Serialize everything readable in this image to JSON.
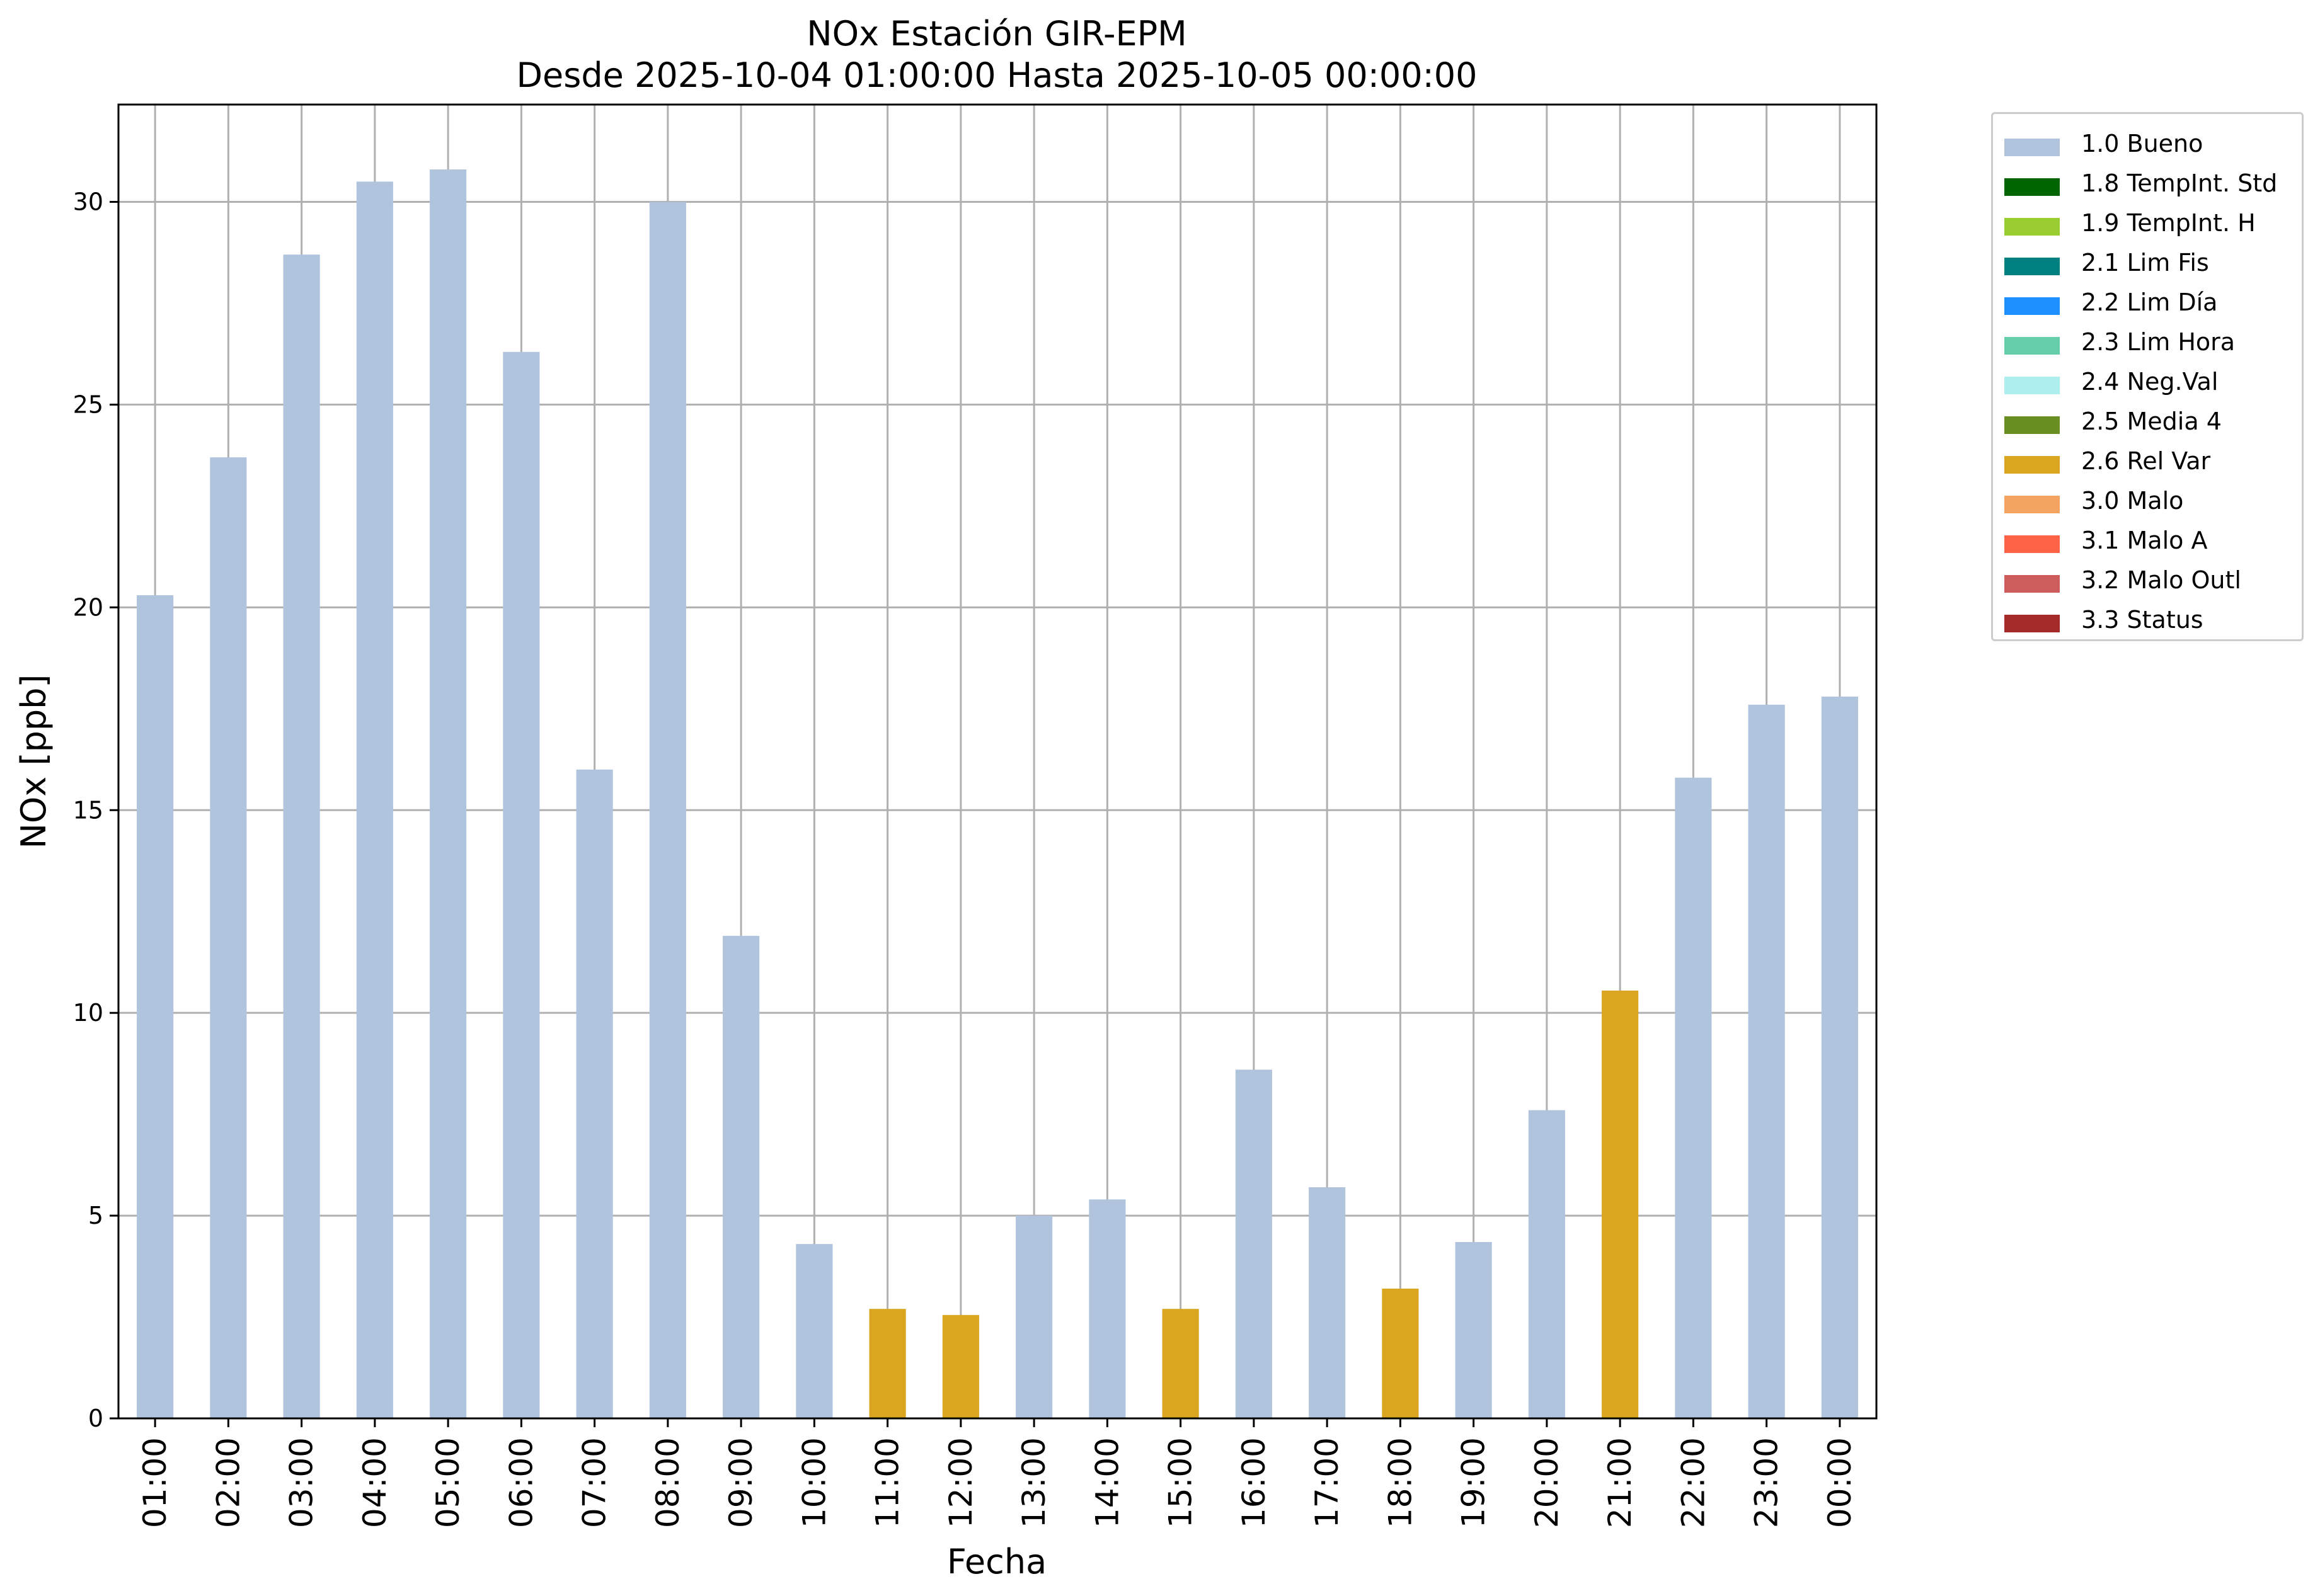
{
  "chart_data": {
    "type": "bar",
    "title": "NOx Estación GIR-EPM",
    "subtitle": "Desde 2025-10-04 01:00:00 Hasta 2025-10-05 00:00:00",
    "xlabel": "Fecha",
    "ylabel": "NOx [ppb]",
    "ylim": [
      0,
      32.4
    ],
    "yticks": [
      0,
      5,
      10,
      15,
      20,
      25,
      30
    ],
    "grid": true,
    "legend_position": "outside right",
    "categories": [
      "01:00",
      "02:00",
      "03:00",
      "04:00",
      "05:00",
      "06:00",
      "07:00",
      "08:00",
      "09:00",
      "10:00",
      "11:00",
      "12:00",
      "13:00",
      "14:00",
      "15:00",
      "16:00",
      "17:00",
      "18:00",
      "19:00",
      "20:00",
      "21:00",
      "22:00",
      "23:00",
      "00:00"
    ],
    "values": [
      20.3,
      23.7,
      28.7,
      30.5,
      30.8,
      26.3,
      16.0,
      30.0,
      11.9,
      4.3,
      2.7,
      2.55,
      5.0,
      5.4,
      2.7,
      8.6,
      5.7,
      3.2,
      4.35,
      7.6,
      10.55,
      15.8,
      17.6,
      17.8
    ],
    "flags": [
      "1.0 Bueno",
      "1.0 Bueno",
      "1.0 Bueno",
      "1.0 Bueno",
      "1.0 Bueno",
      "1.0 Bueno",
      "1.0 Bueno",
      "1.0 Bueno",
      "1.0 Bueno",
      "1.0 Bueno",
      "2.6 Rel Var",
      "2.6 Rel Var",
      "1.0 Bueno",
      "1.0 Bueno",
      "2.6 Rel Var",
      "1.0 Bueno",
      "1.0 Bueno",
      "2.6 Rel Var",
      "1.0 Bueno",
      "1.0 Bueno",
      "2.6 Rel Var",
      "1.0 Bueno",
      "1.0 Bueno",
      "1.0 Bueno"
    ],
    "legend": [
      {
        "label": "1.0 Bueno",
        "color": "#b0c4de"
      },
      {
        "label": "1.8 TempInt. Std",
        "color": "#006400"
      },
      {
        "label": "1.9 TempInt. H",
        "color": "#9acd32"
      },
      {
        "label": "2.1 Lim Fis",
        "color": "#008080"
      },
      {
        "label": "2.2 Lim Día",
        "color": "#1e90ff"
      },
      {
        "label": "2.3 Lim Hora",
        "color": "#66cdaa"
      },
      {
        "label": "2.4 Neg.Val",
        "color": "#afeeee"
      },
      {
        "label": "2.5 Media 4",
        "color": "#6b8e23"
      },
      {
        "label": "2.6 Rel Var",
        "color": "#daa520"
      },
      {
        "label": "3.0 Malo",
        "color": "#f4a460"
      },
      {
        "label": "3.1 Malo A",
        "color": "#ff6347"
      },
      {
        "label": "3.2 Malo Outl",
        "color": "#cd5c5c"
      },
      {
        "label": "3.3 Status",
        "color": "#a52a2a"
      }
    ]
  }
}
